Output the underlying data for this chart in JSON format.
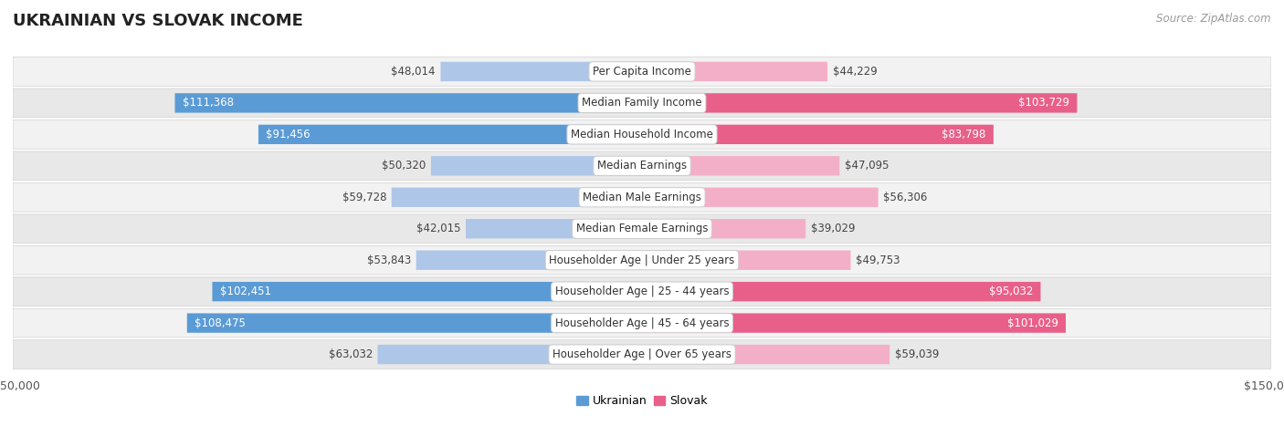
{
  "title": "UKRAINIAN VS SLOVAK INCOME",
  "source": "Source: ZipAtlas.com",
  "categories": [
    "Per Capita Income",
    "Median Family Income",
    "Median Household Income",
    "Median Earnings",
    "Median Male Earnings",
    "Median Female Earnings",
    "Householder Age | Under 25 years",
    "Householder Age | 25 - 44 years",
    "Householder Age | 45 - 64 years",
    "Householder Age | Over 65 years"
  ],
  "ukrainian_values": [
    48014,
    111368,
    91456,
    50320,
    59728,
    42015,
    53843,
    102451,
    108475,
    63032
  ],
  "slovak_values": [
    44229,
    103729,
    83798,
    47095,
    56306,
    39029,
    49753,
    95032,
    101029,
    59039
  ],
  "ukrainian_labels": [
    "$48,014",
    "$111,368",
    "$91,456",
    "$50,320",
    "$59,728",
    "$42,015",
    "$53,843",
    "$102,451",
    "$108,475",
    "$63,032"
  ],
  "slovak_labels": [
    "$44,229",
    "$103,729",
    "$83,798",
    "$47,095",
    "$56,306",
    "$39,029",
    "$49,753",
    "$95,032",
    "$101,029",
    "$59,039"
  ],
  "ukrainian_color_light": "#aec6e8",
  "ukrainian_color_dark": "#5b9bd5",
  "slovak_color_light": "#f4afc8",
  "slovak_color_dark": "#e8608a",
  "large_threshold": 65000,
  "max_value": 150000,
  "background_color": "#ffffff",
  "row_color_even": "#f2f2f2",
  "row_color_odd": "#e8e8e8",
  "title_fontsize": 13,
  "label_fontsize": 8.5,
  "cat_fontsize": 8.5,
  "tick_fontsize": 9,
  "legend_fontsize": 9
}
